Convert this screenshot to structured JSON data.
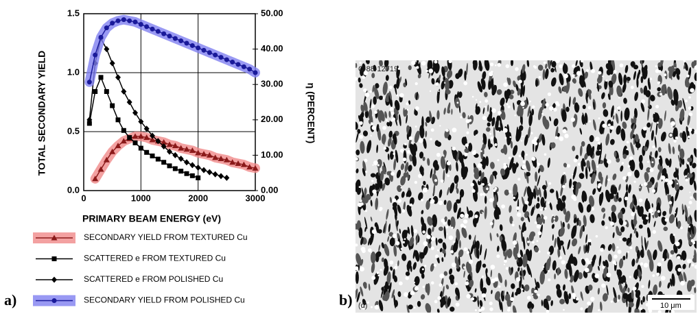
{
  "chart_data": {
    "type": "line",
    "xlabel": "PRIMARY BEAM ENERGY (eV)",
    "ylabel": "TOTAL SECONDARY YIELD",
    "y2label": "η (PERCENT)",
    "xlim": [
      0,
      3000
    ],
    "xticks": [
      0,
      1000,
      2000,
      3000
    ],
    "ylim": [
      0,
      1.5
    ],
    "yticks": [
      {
        "value": 0,
        "label": "0.0"
      },
      {
        "value": 0.5,
        "label": "0.5"
      },
      {
        "value": 1,
        "label": "1.0"
      },
      {
        "value": 1.5,
        "label": "1.5"
      }
    ],
    "y2lim": [
      0,
      50
    ],
    "y2ticks": [
      {
        "value": 0,
        "label": "0.00"
      },
      {
        "value": 10,
        "label": "10.00"
      },
      {
        "value": 20,
        "label": "20.00"
      },
      {
        "value": 30,
        "label": "30.00"
      },
      {
        "value": 40,
        "label": "40.00"
      },
      {
        "value": 50,
        "label": "50.00"
      }
    ],
    "grid": true,
    "series": [
      {
        "name": "SECONDARY YIELD FROM TEXTURED Cu",
        "color": "#8b1a1a",
        "band_color": "#f08a8a",
        "marker": "triangle",
        "axis": "y",
        "x": [
          200,
          300,
          400,
          500,
          600,
          700,
          800,
          900,
          1000,
          1100,
          1200,
          1300,
          1400,
          1500,
          1600,
          1700,
          1800,
          1900,
          2000,
          2100,
          2200,
          2300,
          2400,
          2500,
          2600,
          2700,
          2800,
          2900,
          3000
        ],
        "values": [
          0.1,
          0.18,
          0.26,
          0.33,
          0.38,
          0.42,
          0.44,
          0.46,
          0.46,
          0.45,
          0.43,
          0.42,
          0.41,
          0.39,
          0.38,
          0.36,
          0.35,
          0.34,
          0.32,
          0.31,
          0.3,
          0.28,
          0.27,
          0.26,
          0.24,
          0.23,
          0.22,
          0.2,
          0.19
        ]
      },
      {
        "name": "SCATTERED e FROM TEXTURED Cu",
        "color": "#000000",
        "marker": "square",
        "axis": "y2",
        "x": [
          100,
          200,
          300,
          400,
          500,
          600,
          700,
          800,
          900,
          1000,
          1100,
          1200,
          1300,
          1400,
          1500,
          1600,
          1700,
          1800,
          1900,
          2000
        ],
        "values": [
          19,
          28,
          32,
          28,
          24,
          20,
          17,
          15,
          13.5,
          12,
          10.8,
          9.8,
          8.9,
          8,
          7,
          6.2,
          5.5,
          4.8,
          4.2,
          3.6
        ]
      },
      {
        "name": "SCATTERED e FROM POLISHED Cu",
        "color": "#000000",
        "marker": "diamond",
        "axis": "y2",
        "x": [
          100,
          200,
          300,
          400,
          500,
          600,
          700,
          800,
          900,
          1000,
          1100,
          1200,
          1300,
          1400,
          1500,
          1600,
          1700,
          1800,
          1900,
          2000,
          2100,
          2200,
          2300,
          2400,
          2500
        ],
        "values": [
          20,
          36,
          43,
          40,
          36,
          32,
          28,
          25,
          22,
          19.5,
          17.5,
          15.5,
          14,
          12.5,
          11,
          10,
          9,
          8,
          7.2,
          6.5,
          5.8,
          5.2,
          4.6,
          4.1,
          3.6
        ]
      },
      {
        "name": "SECONDARY YIELD FROM POLISHED Cu",
        "color": "#1a1a9a",
        "band_color": "#8080f0",
        "marker": "circle",
        "axis": "y",
        "x": [
          100,
          200,
          300,
          400,
          500,
          600,
          700,
          800,
          900,
          1000,
          1100,
          1200,
          1300,
          1400,
          1500,
          1600,
          1700,
          1800,
          1900,
          2000,
          2100,
          2200,
          2300,
          2400,
          2500,
          2600,
          2700,
          2800,
          2900,
          3000
        ],
        "values": [
          0.92,
          1.15,
          1.3,
          1.38,
          1.42,
          1.44,
          1.45,
          1.44,
          1.43,
          1.41,
          1.39,
          1.37,
          1.35,
          1.33,
          1.31,
          1.29,
          1.27,
          1.25,
          1.23,
          1.21,
          1.19,
          1.17,
          1.15,
          1.13,
          1.11,
          1.09,
          1.07,
          1.05,
          1.03,
          1.0
        ]
      }
    ]
  },
  "panels": {
    "a": "a)",
    "b": "b)"
  },
  "image": {
    "code": "C-88-12719",
    "panel": "(d)",
    "scale": "10 μm"
  }
}
